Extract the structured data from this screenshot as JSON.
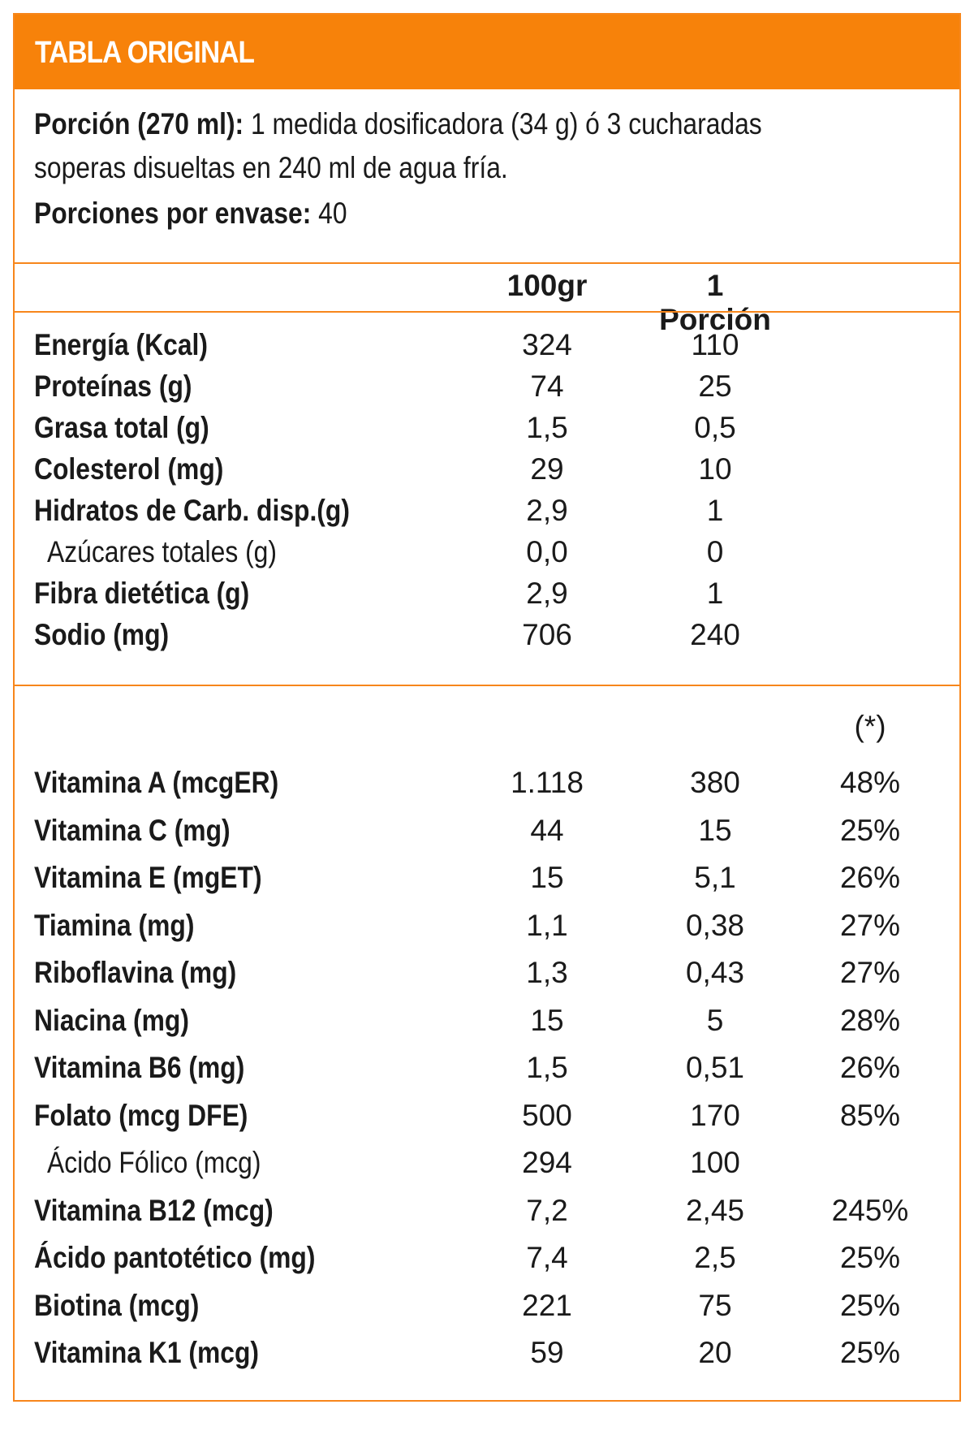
{
  "title": "TABLA ORIGINAL",
  "serving": {
    "label": "Porción (270 ml):",
    "text_line1": "1 medida dosificadora (34 g) ó 3 cucharadas",
    "text_line2": "soperas disueltas en 240 ml de agua fría.",
    "per_container_label": "Porciones por envase:",
    "per_container_value": "40"
  },
  "columns": {
    "per100": "100gr",
    "per_portion": "1 Porción",
    "dv_note": "(*)"
  },
  "accent_color": "#f7820a",
  "nutrients": [
    {
      "label": "Energía (Kcal)",
      "per100": "324",
      "portion": "110",
      "bold": true
    },
    {
      "label": "Proteínas (g)",
      "per100": "74",
      "portion": "25",
      "bold": true
    },
    {
      "label": "Grasa total (g)",
      "per100": "1,5",
      "portion": "0,5",
      "bold": true
    },
    {
      "label": "Colesterol (mg)",
      "per100": "29",
      "portion": "10",
      "bold": true
    },
    {
      "label": "Hidratos de Carb. disp.(g)",
      "per100": "2,9",
      "portion": "1",
      "bold": true
    },
    {
      "label": "Azúcares totales (g)",
      "per100": "0,0",
      "portion": "0",
      "bold": false
    },
    {
      "label": "Fibra dietética (g)",
      "per100": "2,9",
      "portion": "1",
      "bold": true
    },
    {
      "label": "Sodio (mg)",
      "per100": "706",
      "portion": "240",
      "bold": true
    }
  ],
  "vitamins": [
    {
      "label": "Vitamina A (mcgER)",
      "per100": "1.118",
      "portion": "380",
      "dv": "48%",
      "bold": true
    },
    {
      "label": "Vitamina C (mg)",
      "per100": "44",
      "portion": "15",
      "dv": "25%",
      "bold": true
    },
    {
      "label": "Vitamina E (mgET)",
      "per100": "15",
      "portion": "5,1",
      "dv": "26%",
      "bold": true
    },
    {
      "label": "Tiamina (mg)",
      "per100": "1,1",
      "portion": "0,38",
      "dv": "27%",
      "bold": true
    },
    {
      "label": "Riboflavina (mg)",
      "per100": "1,3",
      "portion": "0,43",
      "dv": "27%",
      "bold": true
    },
    {
      "label": "Niacina (mg)",
      "per100": "15",
      "portion": "5",
      "dv": "28%",
      "bold": true
    },
    {
      "label": "Vitamina B6 (mg)",
      "per100": "1,5",
      "portion": "0,51",
      "dv": "26%",
      "bold": true
    },
    {
      "label": "Folato (mcg DFE)",
      "per100": "500",
      "portion": "170",
      "dv": "85%",
      "bold": true
    },
    {
      "label": "Ácido Fólico (mcg)",
      "per100": "294",
      "portion": "100",
      "dv": "",
      "bold": false
    },
    {
      "label": "Vitamina B12 (mcg)",
      "per100": "7,2",
      "portion": "2,45",
      "dv": "245%",
      "bold": true
    },
    {
      "label": "Ácido pantotético (mg)",
      "per100": "7,4",
      "portion": "2,5",
      "dv": "25%",
      "bold": true
    },
    {
      "label": "Biotina (mcg)",
      "per100": "221",
      "portion": "75",
      "dv": "25%",
      "bold": true
    },
    {
      "label": "Vitamina K1 (mcg)",
      "per100": "59",
      "portion": "20",
      "dv": "25%",
      "bold": true
    }
  ]
}
